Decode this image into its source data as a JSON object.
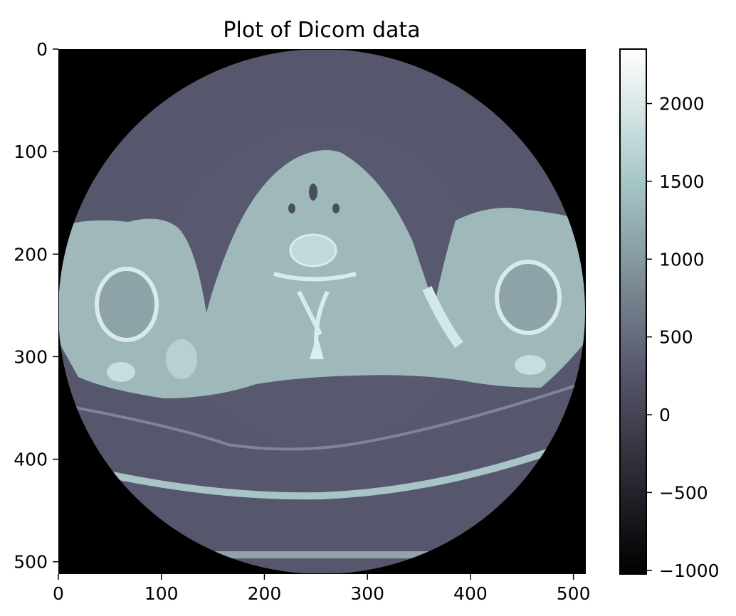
{
  "chart_data": {
    "type": "heatmap",
    "title": "Plot of Dicom data",
    "xlabel": "",
    "ylabel": "",
    "xlim": [
      0,
      512
    ],
    "ylim": [
      512,
      0
    ],
    "x_ticks": [
      0,
      100,
      200,
      300,
      400,
      500
    ],
    "y_ticks": [
      0,
      100,
      200,
      300,
      400,
      500
    ],
    "colormap": "bone",
    "colorbar": {
      "range": [
        -1024,
        2350
      ],
      "ticks": [
        -1000,
        -500,
        0,
        500,
        1000,
        1500,
        2000
      ],
      "tick_labels": [
        "−1000",
        "−500",
        "0",
        "500",
        "1000",
        "1500",
        "2000"
      ]
    },
    "image_description_values": {
      "background_outside_fov": -1024,
      "air_inside_fov": 100,
      "soft_tissue": 1100,
      "bone": 1600
    }
  }
}
